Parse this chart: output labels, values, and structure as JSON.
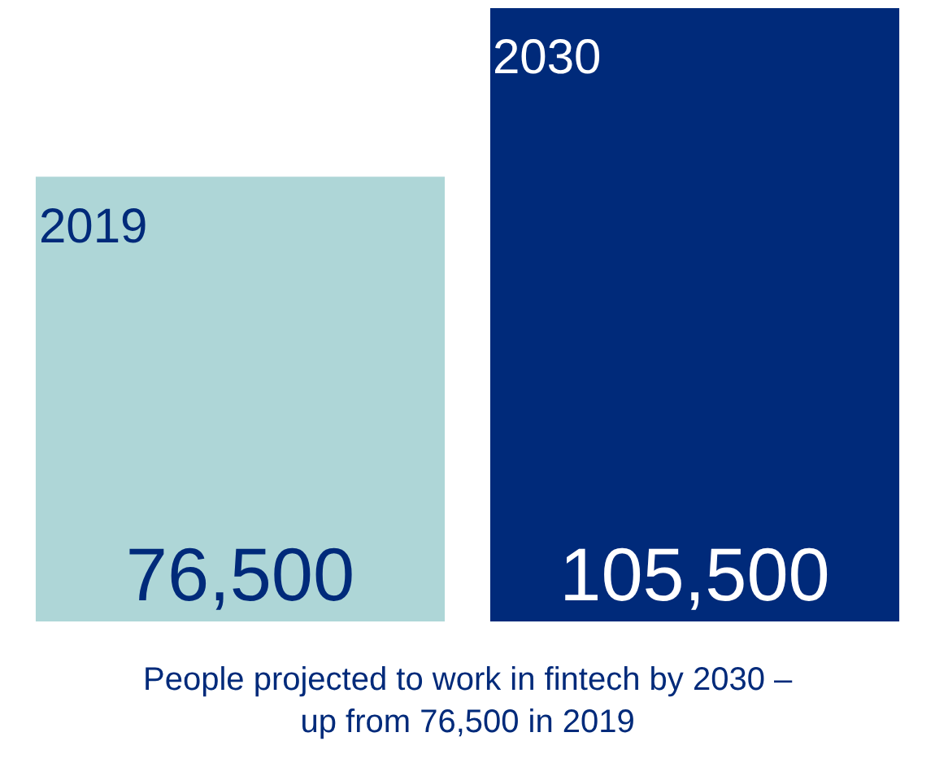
{
  "chart_data": {
    "type": "bar",
    "categories": [
      "2019",
      "2030"
    ],
    "values": [
      76500,
      105500
    ],
    "colors": [
      "#aed6d7",
      "#002a7a"
    ],
    "data_labels": true,
    "value_labels": [
      "76,500",
      "105,500"
    ],
    "annotations": [
      "People projected to work in fintech by 2030 – up from 76,500 in 2019"
    ]
  }
}
